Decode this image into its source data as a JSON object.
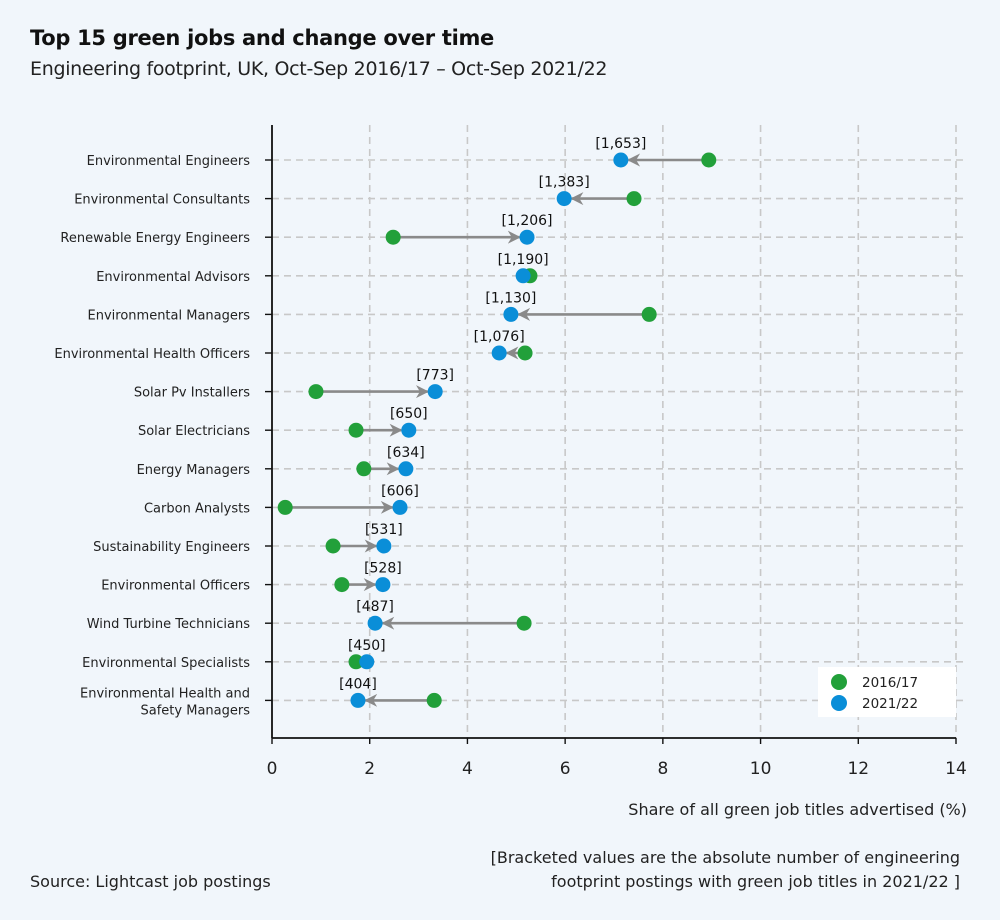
{
  "header": {
    "title": "Top 15 green jobs and change over time",
    "subtitle": "Engineering footprint, UK, Oct-Sep 2016/17 – Oct-Sep 2021/22"
  },
  "footer": {
    "xlabel": "Share of all green job titles advertised (%)",
    "note_line1": "[Bracketed values are the absolute number of engineering",
    "note_line2": "footprint postings with green job titles in 2021/22 ]",
    "source": "Source: Lightcast job postings"
  },
  "colors": {
    "series_2016": "#22a03a",
    "series_2021": "#0a8ed8",
    "arrow": "#8a8a8a",
    "grid": "#c8c8c8"
  },
  "chart_data": {
    "type": "dumbbell",
    "title": "Top 15 green jobs and change over time",
    "subtitle": "Engineering footprint, UK, Oct-Sep 2016/17 – Oct-Sep 2021/22",
    "xlabel": "Share of all green job titles advertised (%)",
    "ylabel": "",
    "xlim": [
      0,
      14
    ],
    "xticks": [
      0,
      2,
      4,
      6,
      8,
      10,
      12,
      14
    ],
    "grid": true,
    "legend": {
      "position": "bottom-right",
      "entries": [
        "2016/17",
        "2021/22"
      ]
    },
    "categories": [
      "Environmental Engineers",
      "Environmental Consultants",
      "Renewable Energy Engineers",
      "Environmental Advisors",
      "Environmental Managers",
      "Environmental Health Officers",
      "Solar Pv Installers",
      "Solar Electricians",
      "Energy Managers",
      "Carbon Analysts",
      "Sustainability Engineers",
      "Environmental Officers",
      "Wind Turbine Technicians",
      "Environmental Specialists",
      "Environmental Health and|Safety Managers"
    ],
    "series": [
      {
        "name": "2016/17",
        "values": [
          8.94,
          7.41,
          2.48,
          5.28,
          7.72,
          5.18,
          0.9,
          1.72,
          1.88,
          0.27,
          1.25,
          1.43,
          5.16,
          1.72,
          3.32
        ]
      },
      {
        "name": "2021/22",
        "values": [
          7.14,
          5.98,
          5.22,
          5.14,
          4.89,
          4.65,
          3.34,
          2.8,
          2.74,
          2.62,
          2.29,
          2.27,
          2.11,
          1.94,
          1.76
        ]
      }
    ],
    "labels_2021_22": [
      "[1,653]",
      "[1,383]",
      "[1,206]",
      "[1,190]",
      "[1,130]",
      "[1,076]",
      "[773]",
      "[650]",
      "[634]",
      "[606]",
      "[531]",
      "[528]",
      "[487]",
      "[450]",
      "[404]"
    ]
  }
}
